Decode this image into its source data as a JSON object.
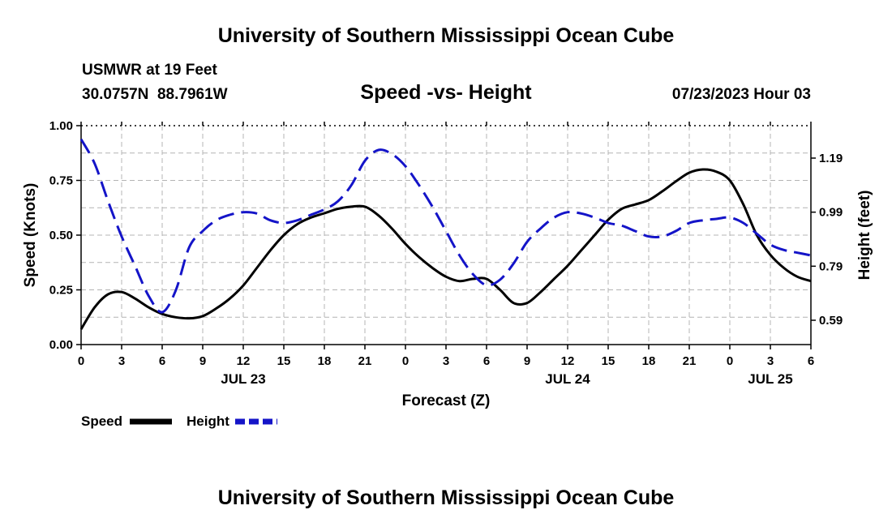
{
  "header": {
    "title": "University of Southern Mississippi Ocean Cube",
    "station": "USMWR at 19 Feet",
    "coords": "30.0757N  88.7961W",
    "date": "07/23/2023 Hour 03"
  },
  "footer": {
    "title": "University of Southern Mississippi Ocean Cube"
  },
  "chart_data": {
    "type": "line",
    "title": "Speed -vs- Height",
    "xlabel": "Forecast (Z)",
    "ylabel": "Speed (Knots)",
    "y2label": "Height (feet)",
    "x_range": [
      0,
      54
    ],
    "ylim": [
      0,
      1
    ],
    "y2lim": [
      0.5,
      1.31
    ],
    "grid": true,
    "x_ticks": [
      {
        "x": 0,
        "label": "0"
      },
      {
        "x": 3,
        "label": "3"
      },
      {
        "x": 6,
        "label": "6"
      },
      {
        "x": 9,
        "label": "9"
      },
      {
        "x": 12,
        "label": "12"
      },
      {
        "x": 15,
        "label": "15"
      },
      {
        "x": 18,
        "label": "18"
      },
      {
        "x": 21,
        "label": "21"
      },
      {
        "x": 24,
        "label": "0"
      },
      {
        "x": 27,
        "label": "3"
      },
      {
        "x": 30,
        "label": "6"
      },
      {
        "x": 33,
        "label": "9"
      },
      {
        "x": 36,
        "label": "12"
      },
      {
        "x": 39,
        "label": "15"
      },
      {
        "x": 42,
        "label": "18"
      },
      {
        "x": 45,
        "label": "21"
      },
      {
        "x": 48,
        "label": "0"
      },
      {
        "x": 51,
        "label": "3"
      },
      {
        "x": 54,
        "label": "6"
      }
    ],
    "date_labels": [
      {
        "x": 12,
        "label": "JUL 23"
      },
      {
        "x": 36,
        "label": "JUL 24"
      },
      {
        "x": 51,
        "label": "JUL 25"
      }
    ],
    "y_ticks": [
      {
        "v": 0,
        "label": "0.00"
      },
      {
        "v": 0.25,
        "label": "0.25"
      },
      {
        "v": 0.5,
        "label": "0.50"
      },
      {
        "v": 0.75,
        "label": "0.75"
      },
      {
        "v": 1.0,
        "label": "1.00"
      }
    ],
    "y2_ticks": [
      {
        "v": 0.59,
        "label": "0.59"
      },
      {
        "v": 0.79,
        "label": "0.79"
      },
      {
        "v": 0.99,
        "label": "0.99"
      },
      {
        "v": 1.19,
        "label": "1.19"
      }
    ],
    "series": [
      {
        "name": "Speed",
        "axis": "left",
        "color": "#000000",
        "dash": "solid",
        "x": [
          0,
          1,
          2,
          3,
          4,
          5,
          6,
          7,
          8,
          9,
          10,
          11,
          12,
          13,
          14,
          15,
          16,
          17,
          18,
          19,
          20,
          21,
          22,
          23,
          24,
          25,
          26,
          27,
          28,
          29,
          30,
          31,
          32,
          33,
          34,
          35,
          36,
          37,
          38,
          39,
          40,
          41,
          42,
          43,
          44,
          45,
          46,
          47,
          48,
          49,
          50,
          51,
          52,
          53,
          54
        ],
        "values": [
          0.07,
          0.17,
          0.23,
          0.24,
          0.21,
          0.17,
          0.14,
          0.125,
          0.12,
          0.13,
          0.165,
          0.21,
          0.27,
          0.35,
          0.43,
          0.5,
          0.55,
          0.58,
          0.6,
          0.62,
          0.63,
          0.63,
          0.59,
          0.53,
          0.46,
          0.4,
          0.35,
          0.31,
          0.29,
          0.3,
          0.3,
          0.25,
          0.19,
          0.19,
          0.24,
          0.3,
          0.36,
          0.43,
          0.5,
          0.57,
          0.62,
          0.64,
          0.66,
          0.7,
          0.745,
          0.785,
          0.8,
          0.79,
          0.75,
          0.64,
          0.5,
          0.41,
          0.35,
          0.31,
          0.29
        ]
      },
      {
        "name": "Height",
        "axis": "right",
        "color": "#1414c8",
        "dash": "dashed",
        "x": [
          0,
          1,
          2,
          3,
          4,
          5,
          6,
          7,
          8,
          9,
          10,
          11,
          12,
          13,
          14,
          15,
          16,
          17,
          18,
          19,
          20,
          21,
          22,
          23,
          24,
          25,
          26,
          27,
          28,
          29,
          30,
          31,
          32,
          33,
          34,
          35,
          36,
          37,
          38,
          39,
          40,
          41,
          42,
          43,
          44,
          45,
          46,
          47,
          48,
          49,
          50,
          51,
          52,
          53,
          54
        ],
        "values": [
          1.26,
          1.17,
          1.03,
          0.9,
          0.79,
          0.68,
          0.62,
          0.7,
          0.86,
          0.92,
          0.96,
          0.98,
          0.99,
          0.985,
          0.96,
          0.95,
          0.96,
          0.98,
          1.0,
          1.03,
          1.09,
          1.18,
          1.22,
          1.205,
          1.16,
          1.09,
          1.01,
          0.92,
          0.83,
          0.76,
          0.72,
          0.74,
          0.8,
          0.88,
          0.93,
          0.97,
          0.99,
          0.985,
          0.97,
          0.95,
          0.94,
          0.92,
          0.9,
          0.9,
          0.92,
          0.95,
          0.96,
          0.965,
          0.97,
          0.95,
          0.91,
          0.87,
          0.85,
          0.84,
          0.83
        ]
      }
    ],
    "legend": [
      {
        "label": "Speed",
        "color": "#000000",
        "dash": "solid"
      },
      {
        "label": "Height",
        "color": "#1414c8",
        "dash": "dashed"
      }
    ]
  }
}
